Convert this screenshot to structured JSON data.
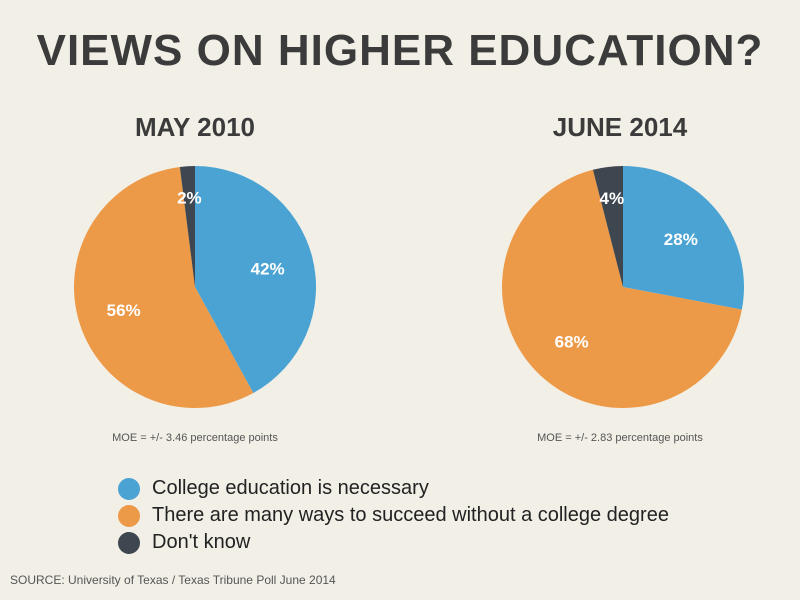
{
  "title": "VIEWS ON HIGHER EDUCATION?",
  "source": "SOURCE: University of Texas / Texas Tribune Poll June 2014",
  "legend": [
    {
      "label": "College education is necessary",
      "color": "#4aa3d3"
    },
    {
      "label": "There are many ways to succeed without a college degree",
      "color": "#ed9a48"
    },
    {
      "label": "Don't know",
      "color": "#3e4650"
    }
  ],
  "chart_data": [
    {
      "type": "pie",
      "title": "MAY 2010",
      "note": "MOE = +/- 3.46 percentage points",
      "slices": [
        {
          "label": "College education is necessary",
          "value": 42,
          "display": "42%",
          "color": "#4aa3d3"
        },
        {
          "label": "There are many ways to succeed without a college degree",
          "value": 56,
          "display": "56%",
          "color": "#ed9a48"
        },
        {
          "label": "Don't know",
          "value": 2,
          "display": "2%",
          "color": "#3e4650"
        }
      ]
    },
    {
      "type": "pie",
      "title": "JUNE 2014",
      "note": "MOE = +/- 2.83 percentage points",
      "slices": [
        {
          "label": "College education is necessary",
          "value": 28,
          "display": "28%",
          "color": "#4aa3d3"
        },
        {
          "label": "There are many ways to succeed without a college degree",
          "value": 68,
          "display": "68%",
          "color": "#ed9a48"
        },
        {
          "label": "Don't know",
          "value": 4,
          "display": "4%",
          "color": "#3e4650"
        }
      ]
    }
  ]
}
